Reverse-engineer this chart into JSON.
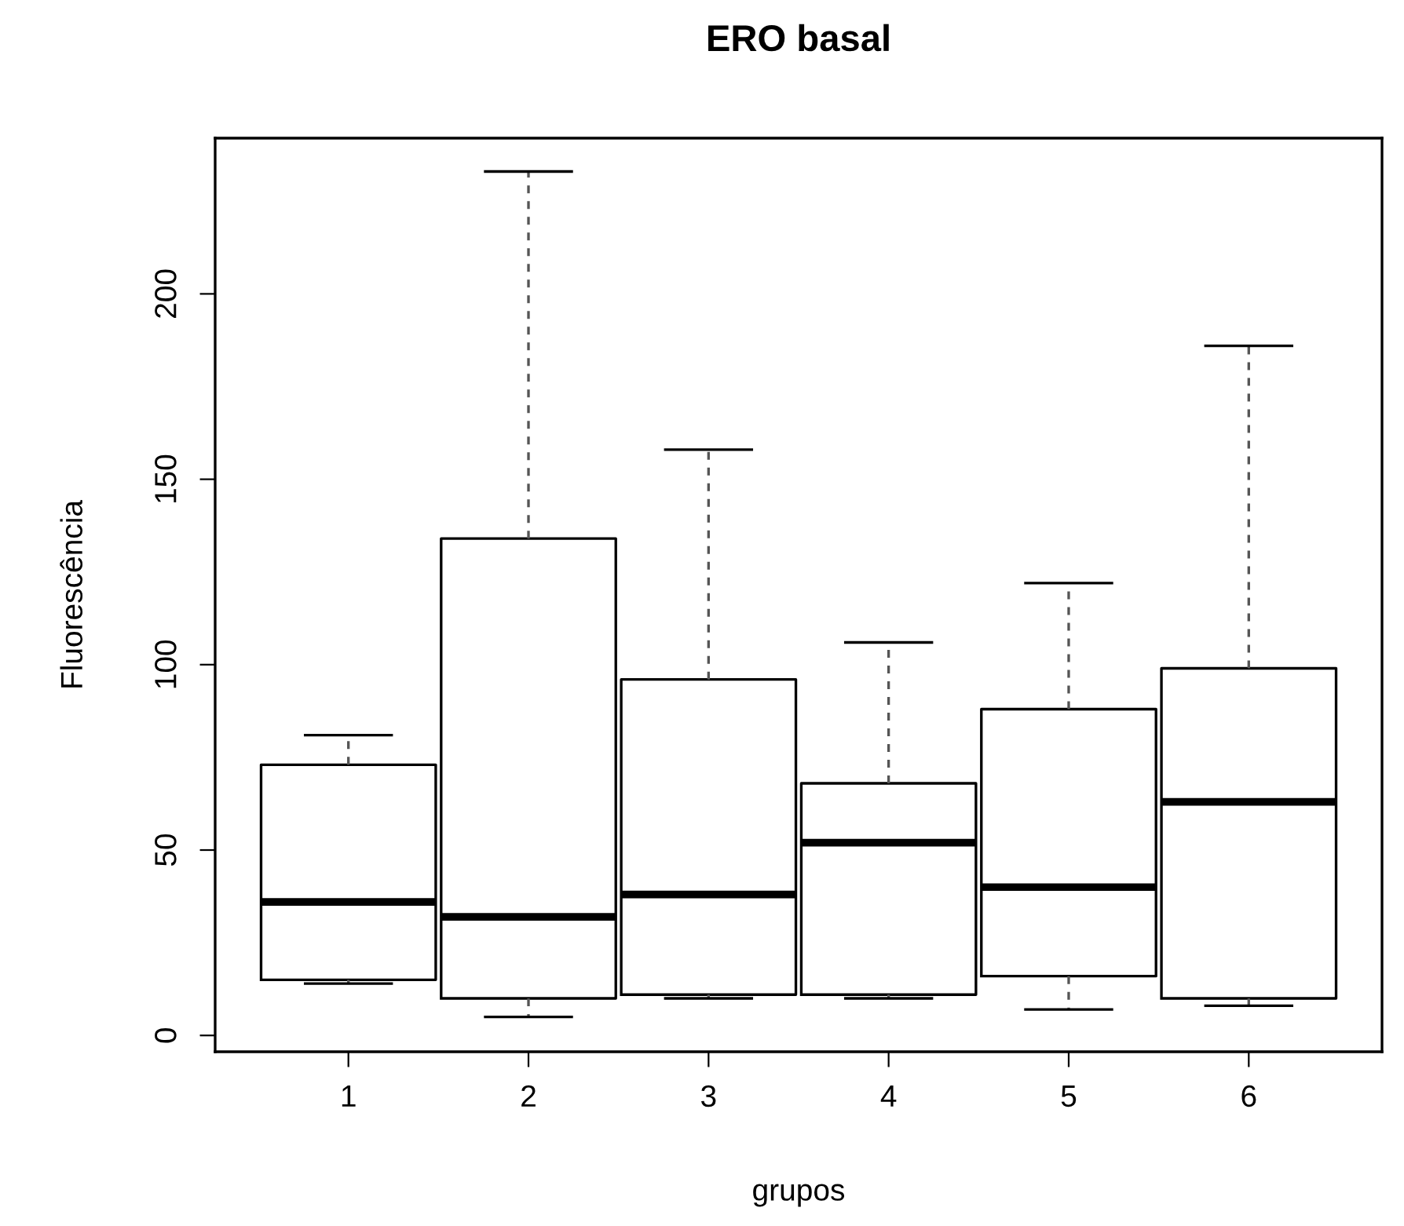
{
  "chart_data": {
    "type": "box",
    "title": "ERO basal",
    "xlabel": "grupos",
    "ylabel": "Fluorescência",
    "categories": [
      "1",
      "2",
      "3",
      "4",
      "5",
      "6"
    ],
    "boxes": [
      {
        "low": 14,
        "q1": 15,
        "median": 36,
        "q3": 73,
        "high": 81
      },
      {
        "low": 5,
        "q1": 10,
        "median": 32,
        "q3": 134,
        "high": 233
      },
      {
        "low": 10,
        "q1": 11,
        "median": 38,
        "q3": 96,
        "high": 158
      },
      {
        "low": 10,
        "q1": 11,
        "median": 52,
        "q3": 68,
        "high": 106
      },
      {
        "low": 7,
        "q1": 16,
        "median": 40,
        "q3": 88,
        "high": 122
      },
      {
        "low": 8,
        "q1": 10,
        "median": 63,
        "q3": 99,
        "high": 186
      }
    ],
    "ylim": [
      -4.4,
      242
    ],
    "yticks": [
      0,
      50,
      100,
      150,
      200
    ],
    "grid": false,
    "line_style": "dashed"
  }
}
